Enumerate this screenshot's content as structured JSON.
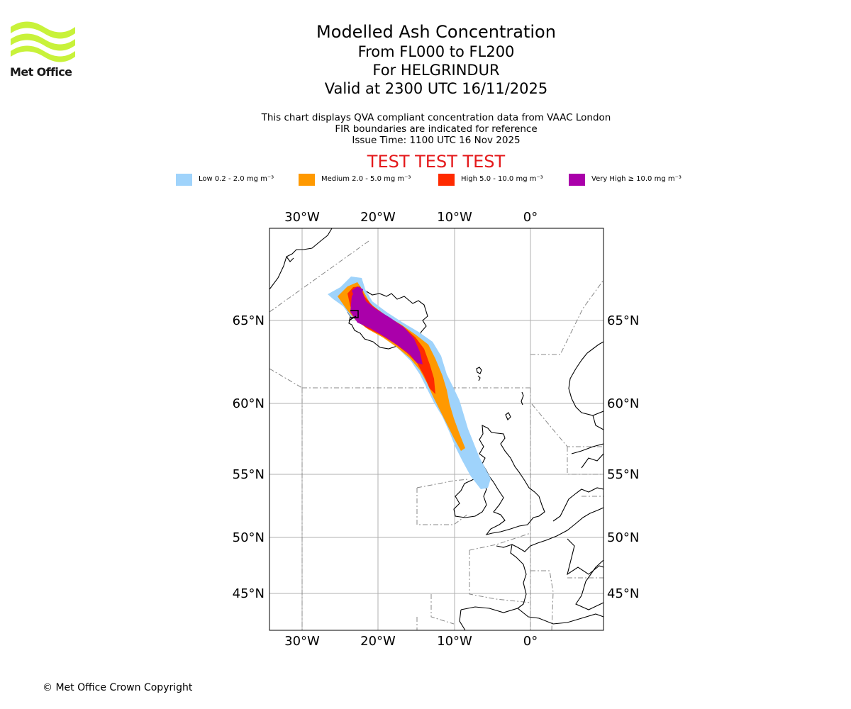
{
  "header": {
    "logo_text": "Met Office",
    "title": "Modelled Ash Concentration",
    "level_range": "From FL000 to FL200",
    "volcano": "For HELGRINDUR",
    "valid_time": "Valid at 2300 UTC 16/11/2025"
  },
  "info": {
    "line1": "This chart displays QVA compliant concentration data from VAAC London",
    "line2": "FIR boundaries are indicated for reference",
    "line3": "Issue Time: 1100 UTC 16 Nov 2025"
  },
  "test_banner": "TEST TEST TEST",
  "legend": [
    {
      "label": "Low 0.2 - 2.0 mg m⁻³",
      "color": "#9fd3fb"
    },
    {
      "label": "Medium 2.0 - 5.0 mg m⁻³",
      "color": "#ff9900"
    },
    {
      "label": "High 5.0 - 10.0 mg m⁻³",
      "color": "#ff2a00"
    },
    {
      "label": "Very High ≥ 10.0 mg m⁻³",
      "color": "#aa00aa"
    }
  ],
  "map": {
    "lon_ticks": [
      "30°W",
      "20°W",
      "10°W",
      "0°"
    ],
    "lat_ticks": [
      "65°N",
      "60°N",
      "55°N",
      "50°N",
      "45°N"
    ]
  },
  "footer": {
    "copyright": "© Met Office Crown Copyright"
  }
}
